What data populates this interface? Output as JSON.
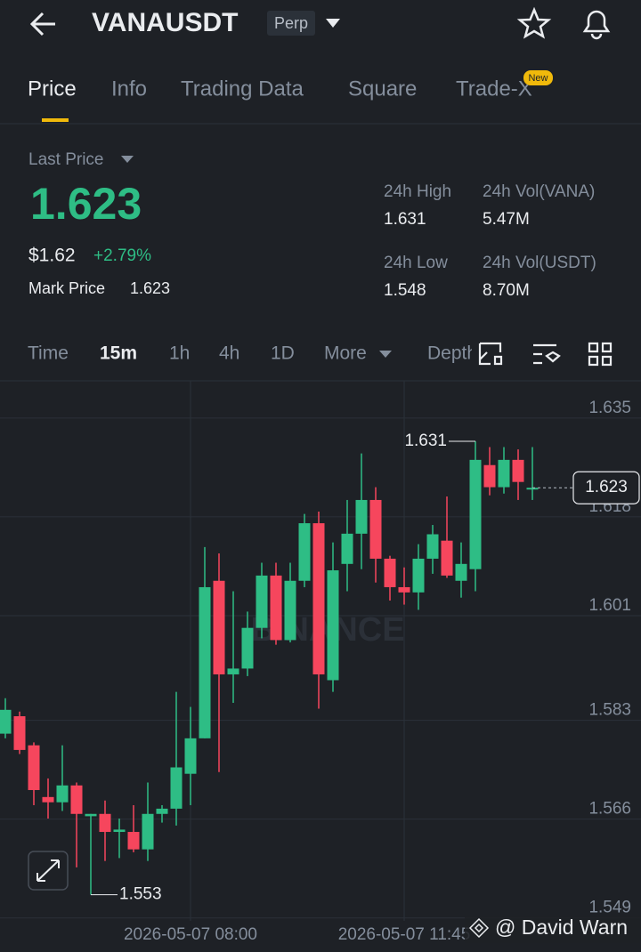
{
  "header": {
    "symbol": "VANAUSDT",
    "badge": "Perp"
  },
  "tabs": [
    "Price",
    "Info",
    "Trading Data",
    "Square",
    "Trade-X"
  ],
  "new_badge": "New",
  "price_panel": {
    "label": "Last Price",
    "last_price": "1.623",
    "usd_price": "$1.62",
    "change": "+2.79%",
    "mark_price_label": "Mark Price",
    "mark_price": "1.623",
    "stats": [
      {
        "label": "24h High",
        "value": "1.631"
      },
      {
        "label": "24h Vol(VANA)",
        "value": "5.47M"
      },
      {
        "label": "24h Low",
        "value": "1.548"
      },
      {
        "label": "24h Vol(USDT)",
        "value": "8.70M"
      }
    ]
  },
  "intervals": [
    "Time",
    "15m",
    "1h",
    "4h",
    "1D",
    "More",
    "Depth"
  ],
  "chart_data": {
    "type": "candlestick",
    "categories": [
      null,
      null,
      null,
      null,
      null,
      null,
      null,
      null,
      null,
      null,
      null,
      null,
      null,
      "2026-05-07 08:00",
      null,
      null,
      null,
      null,
      null,
      null,
      null,
      null,
      null,
      null,
      null,
      null,
      null,
      null,
      "2026-05-07 11:45",
      null,
      null,
      null,
      null,
      null,
      null,
      null,
      null,
      null
    ],
    "open": [
      1.5807,
      1.5837,
      1.5787,
      1.5698,
      1.5689,
      1.5718,
      1.5665,
      1.5669,
      1.5638,
      1.5638,
      1.5608,
      1.5669,
      1.5678,
      1.5738,
      1.5799,
      1.607,
      1.5909,
      1.5919,
      1.5989,
      1.6079,
      1.5968,
      1.607,
      1.6169,
      1.5899,
      1.6099,
      1.6151,
      1.6209,
      1.6108,
      1.6059,
      1.605,
      1.6108,
      1.6139,
      1.607,
      1.609,
      1.6269,
      1.6231,
      1.6278,
      1.6229
    ],
    "high": [
      1.5868,
      1.5845,
      1.5792,
      1.573,
      1.5787,
      1.5723,
      1.5669,
      1.5692,
      1.5661,
      1.5684,
      1.5723,
      1.5684,
      1.5879,
      1.5853,
      1.6128,
      1.6117,
      1.6052,
      1.6017,
      1.6101,
      1.6101,
      1.6101,
      1.6185,
      1.6189,
      1.6136,
      1.6209,
      1.6289,
      1.6231,
      1.6113,
      1.6093,
      1.6133,
      1.6166,
      1.6215,
      1.6136,
      1.631,
      1.63,
      1.63,
      1.6296,
      1.63
    ],
    "low": [
      1.5799,
      1.5772,
      1.5684,
      1.5661,
      1.5674,
      1.5577,
      1.553,
      1.5588,
      1.5593,
      1.5603,
      1.5588,
      1.5654,
      1.5649,
      1.5684,
      1.5799,
      1.5741,
      1.586,
      1.5906,
      1.5971,
      1.596,
      1.5964,
      1.6059,
      1.585,
      1.5879,
      1.6052,
      1.609,
      1.6067,
      1.6036,
      1.6029,
      1.602,
      1.6082,
      1.6075,
      1.6041,
      1.6052,
      1.6217,
      1.622,
      1.6209,
      1.6209
    ],
    "close": [
      1.5848,
      1.5779,
      1.571,
      1.5689,
      1.5718,
      1.5669,
      1.5669,
      1.5638,
      1.5642,
      1.5608,
      1.5669,
      1.5678,
      1.5749,
      1.5799,
      1.6059,
      1.5909,
      1.5919,
      1.5989,
      1.6079,
      1.5968,
      1.607,
      1.6169,
      1.5909,
      1.6088,
      1.6151,
      1.6209,
      1.6108,
      1.6059,
      1.605,
      1.6108,
      1.615,
      1.6079,
      1.6099,
      1.6278,
      1.6231,
      1.6278,
      1.624,
      1.623
    ],
    "up_color": "#2ebd85",
    "down_color": "#f6465d",
    "ylim": [
      1.5485,
      1.6414
    ],
    "yticks": [
      1.635,
      1.618,
      1.601,
      1.583,
      1.566,
      1.549
    ],
    "grid": true,
    "watermark": "BINANCE",
    "credit": "@ David Warn"
  }
}
